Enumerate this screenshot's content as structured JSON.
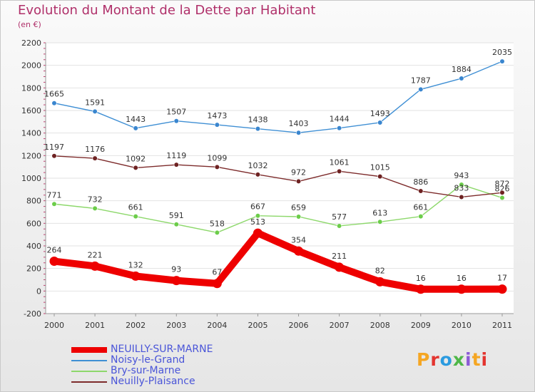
{
  "title": "Evolution du Montant de la Dette par Habitant",
  "subtitle": "(en €)",
  "brand": {
    "text": "Proxiti",
    "colors": [
      "#f5a623",
      "#e3342f",
      "#2b9be0",
      "#4fb748",
      "#8b5bd6",
      "#f5a623",
      "#e3342f"
    ]
  },
  "chart_data": {
    "type": "line",
    "title": "Evolution du Montant de la Dette par Habitant",
    "subtitle": "(en €)",
    "x": [
      "2000",
      "2001",
      "2002",
      "2003",
      "2004",
      "2005",
      "2006",
      "2007",
      "2008",
      "2009",
      "2010",
      "2011"
    ],
    "y_ticks": [
      "2200",
      "2000",
      "1800",
      "1600",
      "1400",
      "1200",
      "1000",
      "800",
      "600",
      "400",
      "200",
      "0",
      "-200"
    ],
    "ylim": [
      -200,
      2200
    ],
    "grid": "horizontal",
    "legend_position": "bottom-left",
    "series": [
      {
        "name": "NEUILLY-SUR-MARNE",
        "color": "#ee0000",
        "emphasis": true,
        "values": [
          264,
          221,
          132,
          93,
          67,
          513,
          354,
          211,
          82,
          16,
          16,
          17
        ],
        "labels": [
          "264",
          "221",
          "132",
          "93",
          "67",
          "513",
          "354",
          "211",
          "82",
          "16",
          "16",
          "17"
        ]
      },
      {
        "name": "Noisy-le-Grand",
        "color": "#3f8fd4",
        "marker": "#3a86cf",
        "values": [
          1665,
          1591,
          1443,
          1507,
          1473,
          1438,
          1403,
          1444,
          1493,
          1787,
          1884,
          2035
        ],
        "labels": [
          "1665",
          "1591",
          "1443",
          "1507",
          "1473",
          "1438",
          "1403",
          "1444",
          "1493",
          "1787",
          "1884",
          "2035"
        ]
      },
      {
        "name": "Bry-sur-Marne",
        "color": "#8dd86b",
        "marker": "#6ccd4a",
        "values": [
          771,
          732,
          661,
          591,
          518,
          667,
          659,
          577,
          613,
          661,
          943,
          826
        ],
        "labels": [
          "771",
          "732",
          "661",
          "591",
          "518",
          "667",
          "659",
          "577",
          "613",
          "661",
          "943",
          "826"
        ]
      },
      {
        "name": "Neuilly-Plaisance",
        "color": "#7d2b2b",
        "marker": "#6e2222",
        "values": [
          1197,
          1176,
          1092,
          1119,
          1099,
          1032,
          972,
          1061,
          1015,
          886,
          833,
          872
        ],
        "labels": [
          "1197",
          "1176",
          "1092",
          "1119",
          "1099",
          "1032",
          "972",
          "1061",
          "1015",
          "886",
          "833",
          "872"
        ]
      }
    ]
  }
}
